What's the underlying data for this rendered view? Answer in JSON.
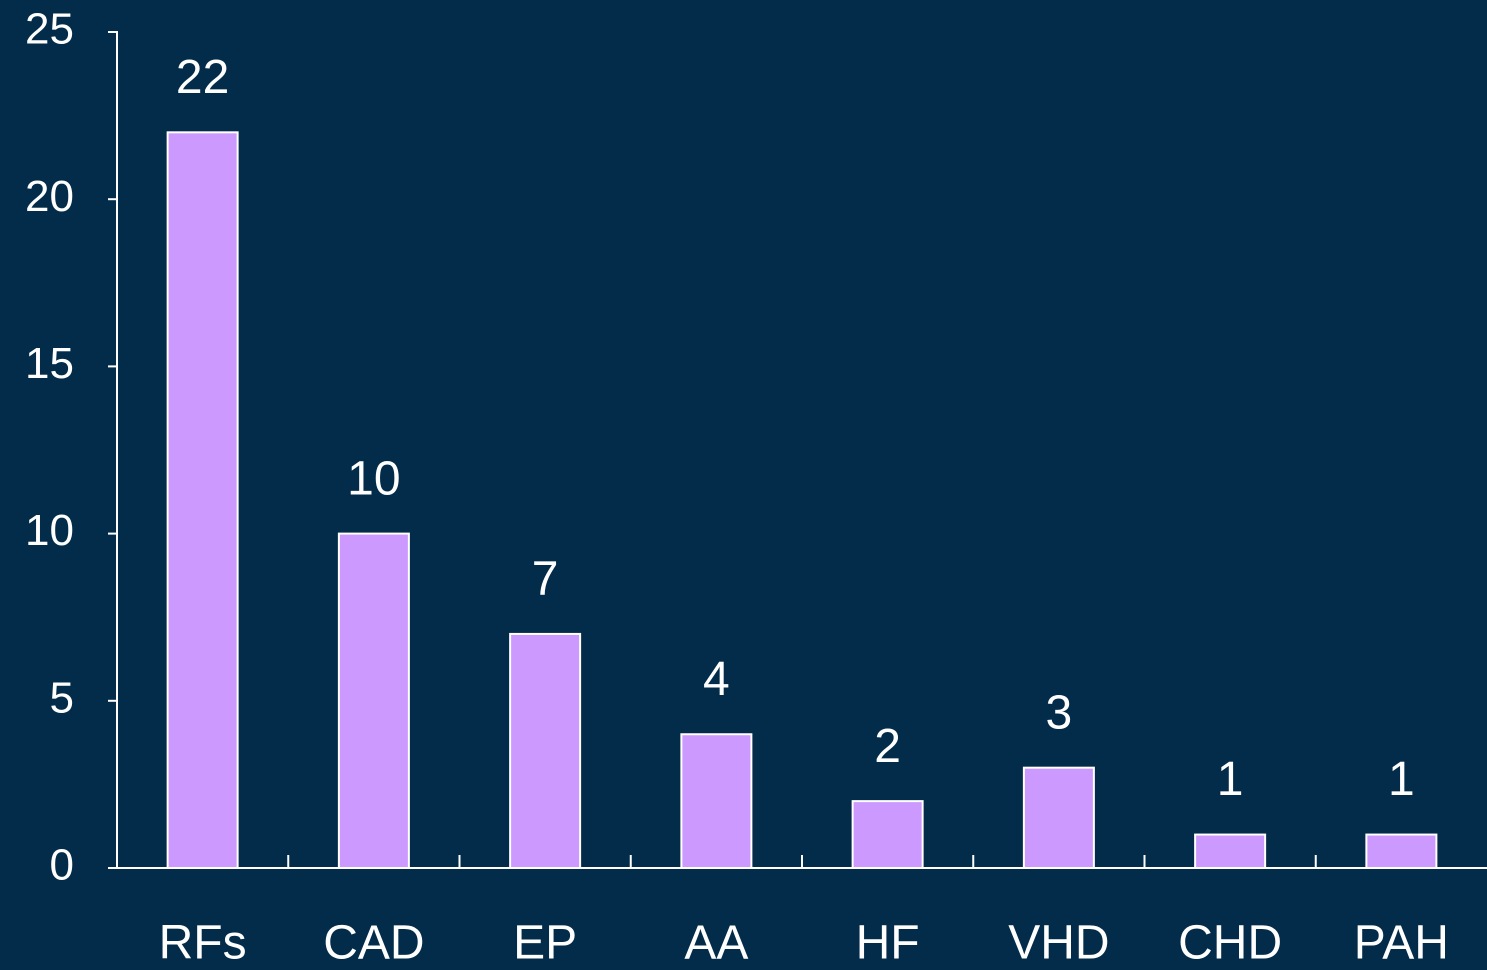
{
  "chart_data": {
    "type": "bar",
    "categories": [
      "RFs",
      "CAD",
      "EP",
      "AA",
      "HF",
      "VHD",
      "CHD",
      "PAH"
    ],
    "values": [
      22,
      10,
      7,
      4,
      2,
      3,
      1,
      1
    ],
    "color": "#cc99ff",
    "ylim": [
      0,
      25
    ],
    "yticks": [
      0,
      5,
      10,
      15,
      20,
      25
    ],
    "grid": false
  }
}
